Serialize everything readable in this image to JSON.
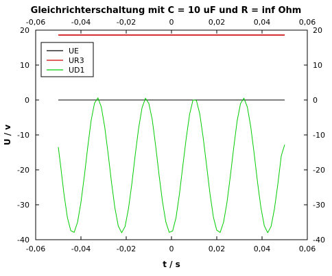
{
  "chart_data": {
    "type": "line",
    "title": "Gleichrichterschaltung mit C = 10 uF und R = inf Ohm",
    "xlabel": "t / s",
    "ylabel": "U / v",
    "xlim": [
      -0.06,
      0.06
    ],
    "ylim": [
      -40,
      20
    ],
    "x_ticks": [
      "-0,06",
      "-0,04",
      "-0,02",
      "0",
      "0,02",
      "0,04",
      "0,06"
    ],
    "y_ticks": [
      "20",
      "10",
      "0",
      "-10",
      "-20",
      "-30",
      "-40"
    ],
    "grid": false,
    "legend_position": "top-left",
    "mirror_axes": "top-right",
    "series": [
      {
        "name": "UE",
        "color": "#000000",
        "x": [
          -0.05,
          0.05
        ],
        "y": [
          0,
          0
        ]
      },
      {
        "name": "UR3",
        "color": "#cc0000",
        "x": [
          -0.05,
          0.05
        ],
        "y": [
          18.6,
          18.6
        ]
      },
      {
        "name": "UD1",
        "color": "#00cc00",
        "x": [
          -0.05,
          -0.049,
          -0.0475,
          -0.046,
          -0.0445,
          -0.043,
          -0.0415,
          -0.04,
          -0.0385,
          -0.037,
          -0.0355,
          -0.034,
          -0.0325,
          -0.031,
          -0.0295,
          -0.028,
          -0.0265,
          -0.025,
          -0.0235,
          -0.022,
          -0.0205,
          -0.019,
          -0.0175,
          -0.016,
          -0.0145,
          -0.013,
          -0.0115,
          -0.01,
          -0.0085,
          -0.007,
          -0.0055,
          -0.004,
          -0.0025,
          -0.001,
          0.0005,
          0.002,
          0.0035,
          0.005,
          0.0065,
          0.008,
          0.0095,
          0.011,
          0.0125,
          0.014,
          0.0155,
          0.017,
          0.0185,
          0.02,
          0.0215,
          0.023,
          0.0245,
          0.026,
          0.0275,
          0.029,
          0.0305,
          0.032,
          0.0335,
          0.035,
          0.0365,
          0.038,
          0.0395,
          0.041,
          0.0425,
          0.044,
          0.0455,
          0.047,
          0.0485,
          0.05
        ],
        "y": [
          -13.5,
          -18.7,
          -26.9,
          -33.6,
          -37.4,
          -37.9,
          -35.0,
          -29.3,
          -21.8,
          -13.5,
          -5.9,
          -0.9,
          0.6,
          -2.0,
          -7.7,
          -15.3,
          -23.6,
          -30.9,
          -36.1,
          -38.0,
          -36.2,
          -31.1,
          -23.9,
          -15.6,
          -8.0,
          -2.2,
          0.5,
          -1.0,
          -5.6,
          -13.1,
          -21.4,
          -29.0,
          -34.9,
          -37.9,
          -37.5,
          -33.7,
          -27.0,
          -18.9,
          -11.0,
          -4.1,
          0.0,
          -0.1,
          -4.0,
          -10.8,
          -18.7,
          -26.8,
          -33.5,
          -37.3,
          -37.9,
          -35.0,
          -29.4,
          -21.8,
          -13.6,
          -6.0,
          -1.0,
          0.5,
          -2.0,
          -7.6,
          -15.2,
          -23.5,
          -30.8,
          -36.0,
          -38.0,
          -36.2,
          -31.1,
          -24.0,
          -16.0,
          -12.8
        ]
      }
    ]
  }
}
